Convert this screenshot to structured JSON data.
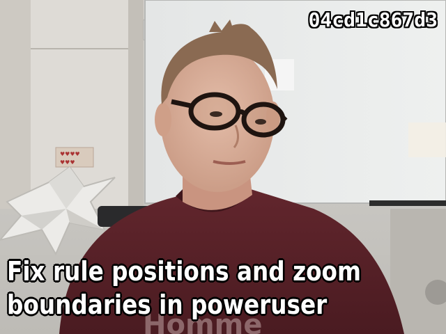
{
  "overlay": {
    "video_id": "04cd1c867d3",
    "caption_lines": [
      "Fix rule positions and zoom",
      "boundaries in poweruser"
    ]
  },
  "colors": {
    "wall": "#d3d2ce",
    "whiteboard": "#e6e8e8",
    "shirt": "#5a2228",
    "skin": "#d9b19d",
    "hair": "#8a6a52",
    "glasses": "#1e1410",
    "star": "#ecebe8"
  }
}
